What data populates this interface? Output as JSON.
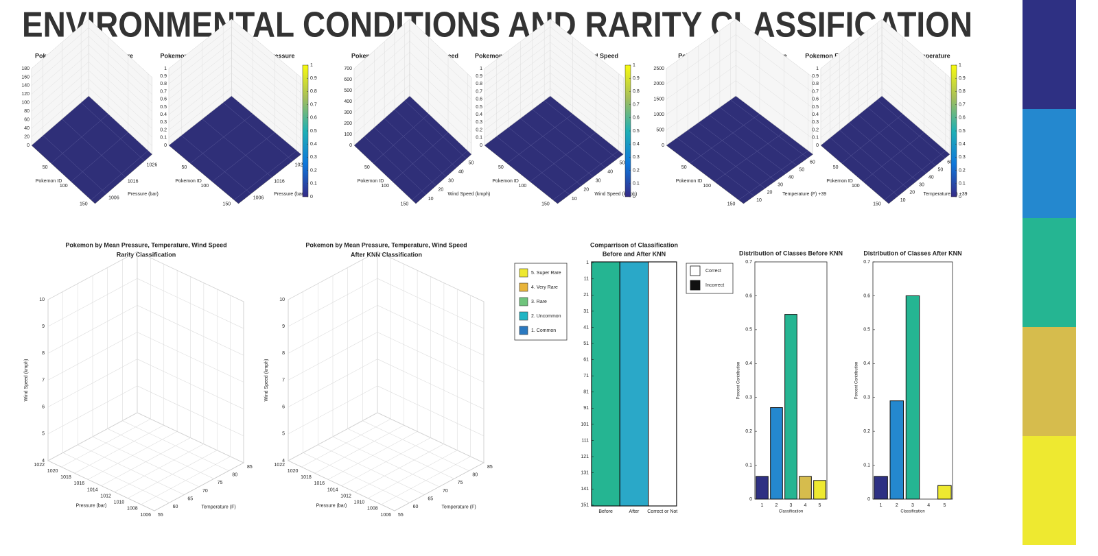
{
  "title": "ENVIRONMENTAL CONDITIONS AND RARITY CLASSIFICATION",
  "colormap": [
    "#2e3083",
    "#2488cf",
    "#25b592",
    "#d6bc4d",
    "#eee930"
  ],
  "legend": {
    "items": [
      {
        "name": "5. Super Rare",
        "color": "#eee930"
      },
      {
        "name": "4. Very Rare",
        "color": "#e8b43a"
      },
      {
        "name": "3. Rare",
        "color": "#6fc47c"
      },
      {
        "name": "2. Uncommon",
        "color": "#1fb5c4"
      },
      {
        "name": "1. Common",
        "color": "#2b79c0"
      }
    ]
  },
  "chart_data": [
    {
      "type": "bar3d",
      "title": "Pokemon Frequency Vs Pressure",
      "xlabel": "Pokemon ID",
      "ylabel": "Pressure (bar)",
      "xlim": [
        1,
        160
      ],
      "xticks": [
        50,
        100,
        150
      ],
      "ylim": [
        1000,
        1030
      ],
      "yticks": [
        1006,
        1016,
        1026
      ],
      "zlim": [
        0,
        180
      ],
      "zticks": [
        0,
        20,
        40,
        60,
        80,
        100,
        120,
        140,
        160,
        180
      ]
    },
    {
      "type": "bar3d",
      "title": "Pokemon Frequency Distribution Vs Pressure",
      "xlabel": "Pokemon ID",
      "ylabel": "Pressure (bar)",
      "xlim": [
        1,
        160
      ],
      "xticks": [
        50,
        100,
        150
      ],
      "ylim": [
        1000,
        1030
      ],
      "yticks": [
        1006,
        1016,
        1026
      ],
      "zlim": [
        0,
        1
      ],
      "zticks": [
        0,
        0.1,
        0.2,
        0.3,
        0.4,
        0.5,
        0.6,
        0.7,
        0.8,
        0.9,
        1
      ],
      "colorbar": {
        "clim": [
          0,
          1
        ],
        "cticks": [
          0,
          0.1,
          0.2,
          0.3,
          0.4,
          0.5,
          0.6,
          0.7,
          0.8,
          0.9,
          1
        ]
      }
    },
    {
      "type": "bar3d",
      "title": "Pokemon Frequency Vs Wind Speed",
      "xlabel": "Pokemon ID",
      "ylabel": "Wind Speed (kmph)",
      "xlim": [
        1,
        160
      ],
      "xticks": [
        50,
        100,
        150
      ],
      "ylim": [
        0,
        55
      ],
      "yticks": [
        10,
        20,
        30,
        40,
        50
      ],
      "zlim": [
        0,
        700
      ],
      "zticks": [
        0,
        100,
        200,
        300,
        400,
        500,
        600,
        700
      ]
    },
    {
      "type": "bar3d",
      "title": "Pokemon Frequency Distribution Vs Wind Speed",
      "xlabel": "Pokemon ID",
      "ylabel": "Wind Speed (kmph)",
      "xlim": [
        1,
        160
      ],
      "xticks": [
        50,
        100,
        150
      ],
      "ylim": [
        0,
        55
      ],
      "yticks": [
        10,
        20,
        30,
        40,
        50
      ],
      "zlim": [
        0,
        1
      ],
      "zticks": [
        0,
        0.1,
        0.2,
        0.3,
        0.4,
        0.5,
        0.6,
        0.7,
        0.8,
        0.9,
        1
      ],
      "colorbar": {
        "clim": [
          0,
          1
        ],
        "cticks": [
          0,
          0.1,
          0.2,
          0.3,
          0.4,
          0.5,
          0.6,
          0.7,
          0.8,
          0.9,
          1
        ]
      }
    },
    {
      "type": "bar3d",
      "title": "Pokemon Frequency Vs Temperature",
      "xlabel": "Pokemon ID",
      "ylabel": "Temperature (F) +39",
      "xlim": [
        1,
        160
      ],
      "xticks": [
        50,
        100,
        150
      ],
      "ylim": [
        0,
        65
      ],
      "yticks": [
        10,
        20,
        30,
        40,
        50,
        60
      ],
      "zlim": [
        0,
        2500
      ],
      "zticks": [
        0,
        500,
        1000,
        1500,
        2000,
        2500
      ]
    },
    {
      "type": "bar3d",
      "title": "Pokemon Frequency Distribution Vs Temperature",
      "xlabel": "Pokemon ID",
      "ylabel": "Temperature (F) +39",
      "xlim": [
        1,
        160
      ],
      "xticks": [
        50,
        100,
        150
      ],
      "ylim": [
        0,
        65
      ],
      "yticks": [
        10,
        20,
        30,
        40,
        50,
        60
      ],
      "zlim": [
        0,
        1
      ],
      "zticks": [
        0,
        0.1,
        0.2,
        0.3,
        0.4,
        0.5,
        0.6,
        0.7,
        0.8,
        0.9,
        1
      ],
      "colorbar": {
        "clim": [
          0,
          1
        ],
        "cticks": [
          0,
          0.1,
          0.2,
          0.3,
          0.4,
          0.5,
          0.6,
          0.7,
          0.8,
          0.9,
          1
        ]
      }
    },
    {
      "type": "scatter3d",
      "title": [
        "Pokemon by Mean Pressure, Temperature, Wind Speed",
        "Rarity Classification"
      ],
      "xlabel": "Pressure (bar)",
      "xlim": [
        1006,
        1022
      ],
      "xticks": [
        1006,
        1008,
        1010,
        1012,
        1014,
        1016,
        1018,
        1020,
        1022
      ],
      "xreverse": true,
      "ylabel": "Temperature (F)",
      "ylim": [
        55,
        85
      ],
      "yticks": [
        55,
        60,
        65,
        70,
        75,
        80,
        85
      ],
      "zlabel": "Wind Speed (kmph)",
      "zlim": [
        4,
        10
      ],
      "zticks": [
        4,
        5,
        6,
        7,
        8,
        9,
        10
      ]
    },
    {
      "type": "scatter3d",
      "title": [
        "Pokemon by Mean Pressure, Temperature, Wind Speed",
        "After KNN Classification"
      ],
      "xlabel": "Pressure (bar)",
      "xlim": [
        1006,
        1022
      ],
      "xticks": [
        1006,
        1008,
        1010,
        1012,
        1014,
        1016,
        1018,
        1020,
        1022
      ],
      "xreverse": true,
      "ylabel": "Temperature (F)",
      "ylim": [
        55,
        85
      ],
      "yticks": [
        55,
        60,
        65,
        70,
        75,
        80,
        85
      ],
      "zlabel": "Wind Speed (kmph)",
      "zlim": [
        4,
        10
      ],
      "zticks": [
        4,
        5,
        6,
        7,
        8,
        9,
        10
      ]
    },
    {
      "type": "heatmap",
      "title": [
        "Comparrison of Classification",
        "Before and After KNN"
      ],
      "categories": [
        "Before",
        "After",
        "Correct or Not"
      ],
      "ylim": [
        1,
        151
      ],
      "yticks": [
        1,
        11,
        21,
        31,
        41,
        51,
        61,
        71,
        81,
        91,
        101,
        111,
        121,
        131,
        141,
        151
      ],
      "legend": [
        {
          "name": "Correct",
          "color": "#ffffff"
        },
        {
          "name": "Incorrect",
          "color": "#111111"
        }
      ]
    },
    {
      "type": "bar",
      "title": "Distribution of Classes Before KNN",
      "xlabel": "Classification",
      "ylabel": "Percent Contribution",
      "categories": [
        "1",
        "2",
        "3",
        "4",
        "5"
      ],
      "values": [
        0.067,
        0.27,
        0.545,
        0.067,
        0.055
      ],
      "colors": [
        "#2e3083",
        "#2488cf",
        "#25b592",
        "#d6bc4d",
        "#eee930"
      ],
      "ylim": [
        0,
        0.7
      ],
      "yticks": [
        0,
        0.1,
        0.2,
        0.3,
        0.4,
        0.5,
        0.6,
        0.7
      ]
    },
    {
      "type": "bar",
      "title": "Distribution of Classes After KNN",
      "xlabel": "Classification",
      "ylabel": "Percent Contribution",
      "categories": [
        "1",
        "2",
        "3",
        "4",
        "5"
      ],
      "values": [
        0.067,
        0.29,
        0.6,
        0,
        0.04
      ],
      "colors": [
        "#2e3083",
        "#2488cf",
        "#25b592",
        "#d6bc4d",
        "#eee930"
      ],
      "ylim": [
        0,
        0.7
      ],
      "yticks": [
        0,
        0.1,
        0.2,
        0.3,
        0.4,
        0.5,
        0.6,
        0.7
      ]
    }
  ]
}
